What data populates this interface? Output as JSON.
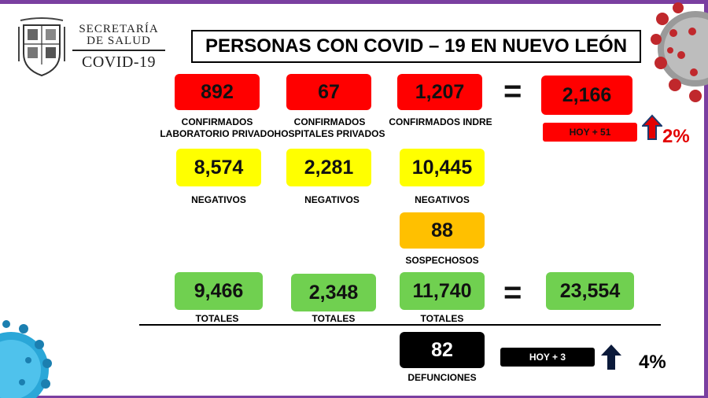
{
  "logo": {
    "line1": "SECRETARÍA",
    "line2": "DE SALUD",
    "line3": "COVID-19"
  },
  "title": "PERSONAS CON COVID – 19 EN NUEVO LEÓN",
  "confirmed": {
    "lab_privado": {
      "value": "892",
      "label_l1": "CONFIRMADOS",
      "label_l2": "LABORATORIO PRIVADO"
    },
    "hosp_privados": {
      "value": "67",
      "label_l1": "CONFIRMADOS",
      "label_l2": "HOSPITALES PRIVADOS"
    },
    "indre": {
      "value": "1,207",
      "label": "CONFIRMADOS INDRE"
    },
    "equals": "=",
    "total": "2,166",
    "today": "HOY + 51",
    "pct": "2%"
  },
  "negatives": {
    "values": [
      "8,574",
      "2,281",
      "10,445"
    ],
    "label": "NEGATIVOS"
  },
  "suspects": {
    "value": "88",
    "label": "SOSPECHOSOS"
  },
  "totals": {
    "values": [
      "9,466",
      "2,348",
      "11,740"
    ],
    "label": "TOTALES",
    "equals": "=",
    "grand_total": "23,554"
  },
  "deaths": {
    "value": "82",
    "label": "DEFUNCIONES",
    "today": "HOY + 3",
    "pct": "4%"
  },
  "colors": {
    "red": "#ff0000",
    "yellow": "#ffff00",
    "orange": "#ffc000",
    "green": "#70d050",
    "frame": "#7a3fa0"
  }
}
